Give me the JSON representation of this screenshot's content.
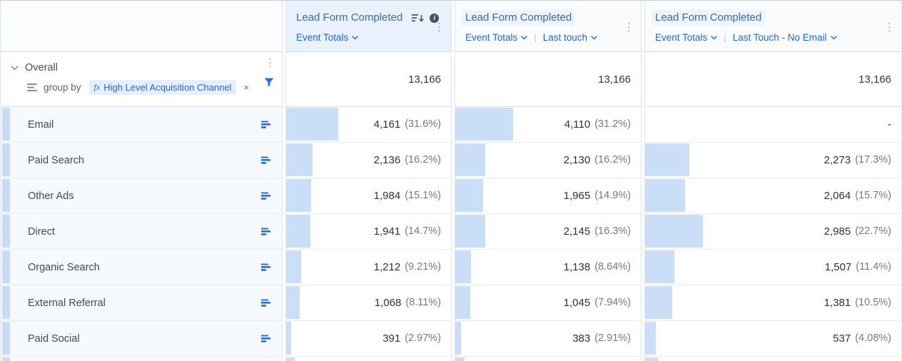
{
  "columns": [
    {
      "title": "Lead Form Completed",
      "controls": [
        "Event Totals"
      ],
      "selected": true
    },
    {
      "title": "Lead Form Completed",
      "controls": [
        "Event Totals",
        "Last touch"
      ],
      "selected": false
    },
    {
      "title": "Lead Form Completed",
      "controls": [
        "Event Totals",
        "Last Touch - No Email"
      ],
      "selected": false
    }
  ],
  "overall": {
    "label": "Overall",
    "group_by_label": "group by",
    "chip_fx": "fx",
    "chip_label": "High Level Acquisition Channel",
    "values": [
      "13,166",
      "13,166",
      "13,166"
    ]
  },
  "rows": [
    {
      "label": "Email",
      "cells": [
        {
          "value": "4,161",
          "pct": "(31.6%)",
          "bar": 31.6
        },
        {
          "value": "4,110",
          "pct": "(31.2%)",
          "bar": 31.2
        },
        {
          "value": "-",
          "pct": "",
          "bar": 0
        }
      ]
    },
    {
      "label": "Paid Search",
      "cells": [
        {
          "value": "2,136",
          "pct": "(16.2%)",
          "bar": 16.2
        },
        {
          "value": "2,130",
          "pct": "(16.2%)",
          "bar": 16.2
        },
        {
          "value": "2,273",
          "pct": "(17.3%)",
          "bar": 17.3
        }
      ]
    },
    {
      "label": "Other Ads",
      "cells": [
        {
          "value": "1,984",
          "pct": "(15.1%)",
          "bar": 15.1
        },
        {
          "value": "1,965",
          "pct": "(14.9%)",
          "bar": 14.9
        },
        {
          "value": "2,064",
          "pct": "(15.7%)",
          "bar": 15.7
        }
      ]
    },
    {
      "label": "Direct",
      "cells": [
        {
          "value": "1,941",
          "pct": "(14.7%)",
          "bar": 14.7
        },
        {
          "value": "2,145",
          "pct": "(16.3%)",
          "bar": 16.3
        },
        {
          "value": "2,985",
          "pct": "(22.7%)",
          "bar": 22.7
        }
      ]
    },
    {
      "label": "Organic Search",
      "cells": [
        {
          "value": "1,212",
          "pct": "(9.21%)",
          "bar": 9.21
        },
        {
          "value": "1,138",
          "pct": "(8.64%)",
          "bar": 8.64
        },
        {
          "value": "1,507",
          "pct": "(11.4%)",
          "bar": 11.4
        }
      ]
    },
    {
      "label": "External Referral",
      "cells": [
        {
          "value": "1,068",
          "pct": "(8.11%)",
          "bar": 8.11
        },
        {
          "value": "1,045",
          "pct": "(7.94%)",
          "bar": 7.94
        },
        {
          "value": "1,381",
          "pct": "(10.5%)",
          "bar": 10.5
        }
      ]
    },
    {
      "label": "Paid Social",
      "cells": [
        {
          "value": "391",
          "pct": "(2.97%)",
          "bar": 2.97
        },
        {
          "value": "383",
          "pct": "(2.91%)",
          "bar": 2.91
        },
        {
          "value": "537",
          "pct": "(4.08%)",
          "bar": 4.08
        }
      ]
    }
  ],
  "icons": {
    "kebab": "⋮",
    "info": "i",
    "remove": "×"
  },
  "colors": {
    "accent_blue": "#2170e8",
    "bar_fill": "#cadef8",
    "row_accent": "#c7dcf8",
    "header_selected_bg": "#e9f1fc",
    "title_blue": "#3e68ac",
    "link_blue": "#2465d6"
  }
}
